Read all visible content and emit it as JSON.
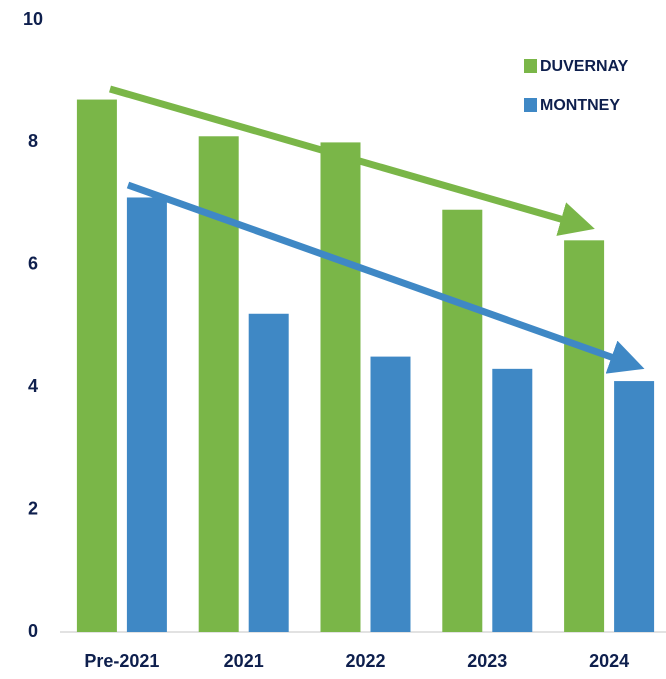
{
  "chart_data": {
    "type": "bar",
    "categories": [
      "Pre-2021",
      "2021",
      "2022",
      "2023",
      "2024"
    ],
    "series": [
      {
        "name": "DUVERNAY",
        "color": "#7ab648",
        "values": [
          8.7,
          8.1,
          8.0,
          6.9,
          6.4
        ]
      },
      {
        "name": "MONTNEY",
        "color": "#3f88c5",
        "values": [
          7.1,
          5.2,
          4.5,
          4.3,
          4.1
        ]
      }
    ],
    "ylim": [
      0,
      10
    ],
    "yticks": [
      0,
      2,
      4,
      6,
      8,
      10
    ],
    "grid": false,
    "legend": "upper right"
  }
}
